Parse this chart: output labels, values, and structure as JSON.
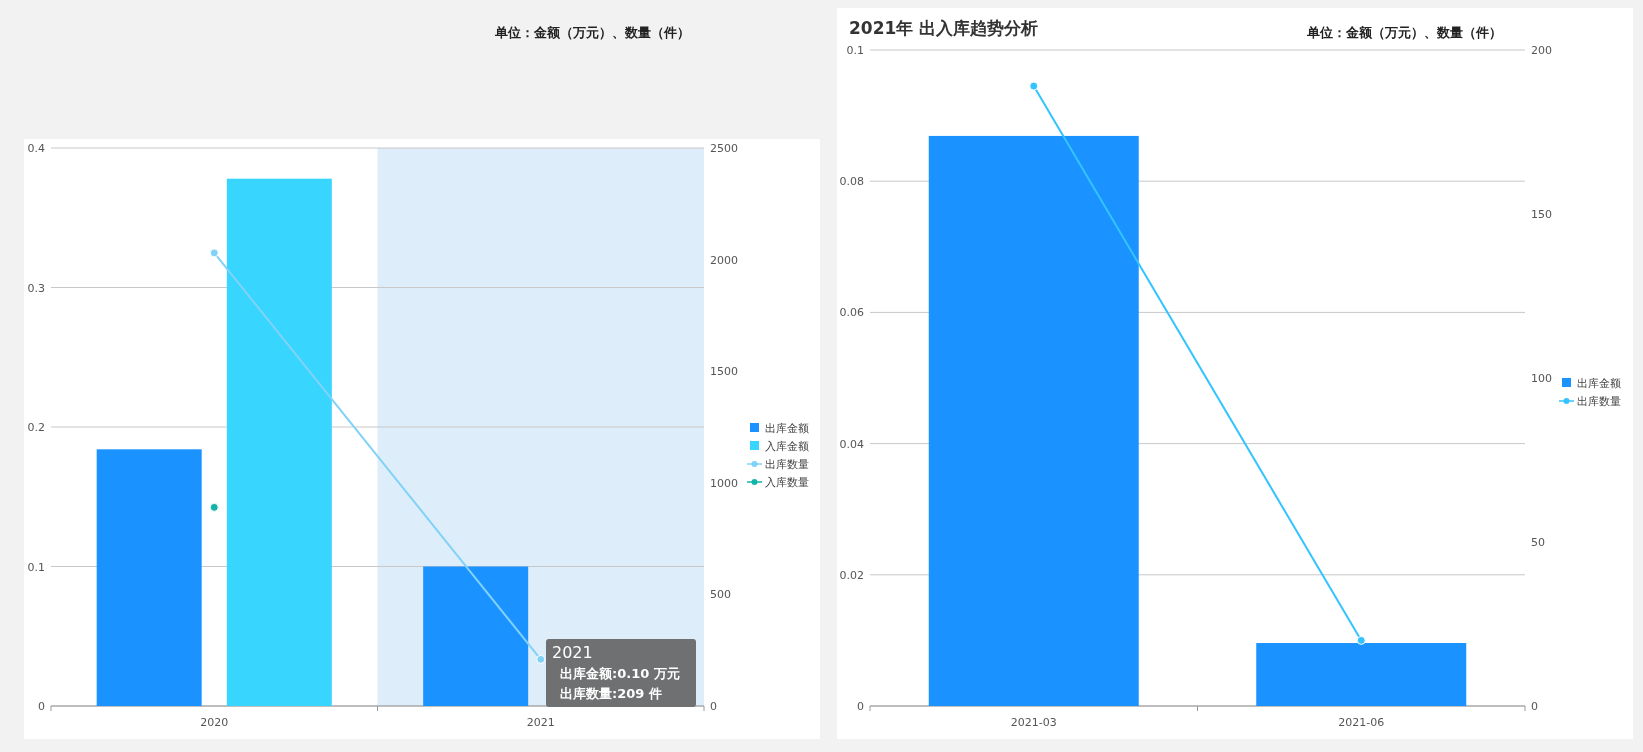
{
  "chart_data": [
    {
      "type": "bar",
      "categories": [
        "2020",
        "2021"
      ],
      "ylim": [
        0,
        0.4
      ],
      "yticks": [
        0,
        0.1,
        0.2,
        0.3,
        0.4
      ],
      "y2lim": [
        0,
        2500
      ],
      "y2ticks": [
        0,
        500,
        1000,
        1500,
        2000,
        2500
      ],
      "grid": "y",
      "legend": "right",
      "marker": "circle",
      "series": [
        {
          "name": "出库金额",
          "color": "#1a92ff",
          "values": [
            0.184,
            0.1
          ]
        },
        {
          "name": "入库金额",
          "color": "#38d5ff",
          "values": [
            0.378,
            null
          ]
        },
        {
          "name": "出库数量",
          "type": "line",
          "axis": "y2",
          "color": "#80d2f7",
          "values": [
            2030,
            209
          ]
        },
        {
          "name": "入库数量",
          "type": "line",
          "axis": "y2",
          "color": "#14b3a8",
          "values": [
            890,
            null
          ]
        }
      ],
      "bands": [
        {
          "axis": "x",
          "from": "2021",
          "to": "2021",
          "color": "#deedfa"
        }
      ],
      "annotations": [
        "单位：金额（万元）、数量（件）",
        "2021",
        "出库金额:0.10 万元",
        "出库数量:209 件"
      ]
    },
    {
      "type": "bar",
      "title": "2021年 出入库趋势分析",
      "categories": [
        "2021-03",
        "2021-06"
      ],
      "ylim": [
        0,
        0.1
      ],
      "yticks": [
        0,
        0.02,
        0.04,
        0.06,
        0.08,
        0.1
      ],
      "y2lim": [
        0,
        200
      ],
      "y2ticks": [
        0,
        50,
        100,
        150,
        200
      ],
      "grid": "y",
      "legend": "right",
      "marker": "circle",
      "series": [
        {
          "name": "出库金额",
          "color": "#1a92ff",
          "values": [
            0.0869,
            0.0096
          ]
        },
        {
          "name": "出库数量",
          "type": "line",
          "axis": "y2",
          "color": "#33c3ff",
          "values": [
            189,
            20
          ]
        }
      ],
      "annotations": [
        "单位：金额（万元）、数量（件）"
      ]
    }
  ]
}
